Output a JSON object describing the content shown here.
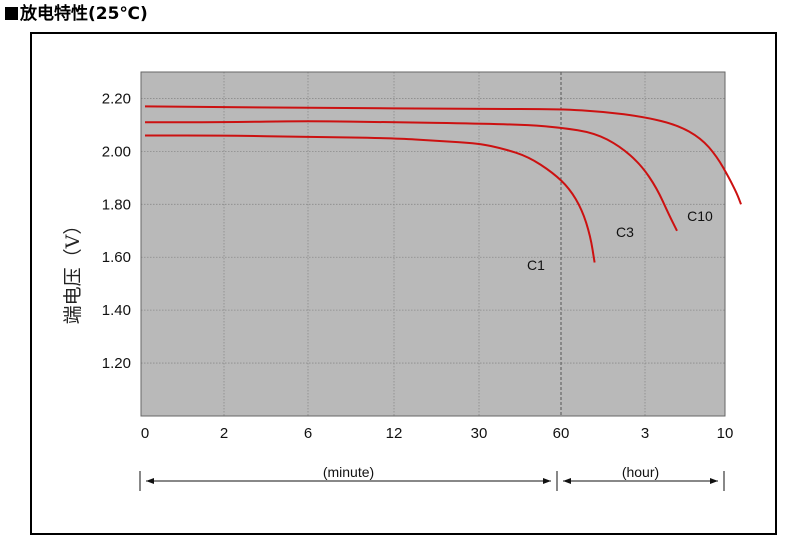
{
  "heading": "放电特性(25℃)",
  "colors": {
    "plot_bg": "#b9b9b9",
    "curve": "#cc1111",
    "grid": "#8a8a8a"
  },
  "chart_data": {
    "type": "line",
    "title": "放电特性(25℃)",
    "ylabel": "端电压（V）",
    "ylim": [
      1.0,
      2.3
    ],
    "yticks": [
      "1.20",
      "1.40",
      "1.60",
      "1.80",
      "2.00",
      "2.20"
    ],
    "xticks": [
      "0",
      "2",
      "6",
      "12",
      "30",
      "60",
      "3",
      "10"
    ],
    "x_spans": [
      {
        "label": "(minute)",
        "from_tick": 0,
        "to_tick": 5
      },
      {
        "label": "(hour)",
        "from_tick": 5,
        "to_tick": 7
      }
    ],
    "grid": true,
    "series": [
      {
        "name": "C1",
        "points": [
          [
            0,
            2.06
          ],
          [
            1.0,
            2.06
          ],
          [
            2.0,
            2.055
          ],
          [
            3.0,
            2.05
          ],
          [
            3.5,
            2.04
          ],
          [
            4.0,
            2.03
          ],
          [
            4.3,
            2.01
          ],
          [
            4.6,
            1.98
          ],
          [
            4.9,
            1.92
          ],
          [
            5.1,
            1.86
          ],
          [
            5.25,
            1.78
          ],
          [
            5.35,
            1.68
          ],
          [
            5.4,
            1.58
          ]
        ]
      },
      {
        "name": "C3",
        "points": [
          [
            0,
            2.11
          ],
          [
            1.0,
            2.11
          ],
          [
            2.0,
            2.115
          ],
          [
            3.0,
            2.11
          ],
          [
            4.0,
            2.105
          ],
          [
            4.6,
            2.1
          ],
          [
            5.0,
            2.09
          ],
          [
            5.4,
            2.07
          ],
          [
            5.7,
            2.02
          ],
          [
            5.95,
            1.95
          ],
          [
            6.15,
            1.86
          ],
          [
            6.3,
            1.76
          ],
          [
            6.4,
            1.7
          ]
        ]
      },
      {
        "name": "C10",
        "points": [
          [
            0,
            2.17
          ],
          [
            2.0,
            2.165
          ],
          [
            4.0,
            2.16
          ],
          [
            5.0,
            2.16
          ],
          [
            5.5,
            2.15
          ],
          [
            6.0,
            2.13
          ],
          [
            6.4,
            2.1
          ],
          [
            6.7,
            2.05
          ],
          [
            6.9,
            1.98
          ],
          [
            7.05,
            1.9
          ],
          [
            7.15,
            1.84
          ],
          [
            7.2,
            1.8
          ]
        ]
      }
    ]
  }
}
